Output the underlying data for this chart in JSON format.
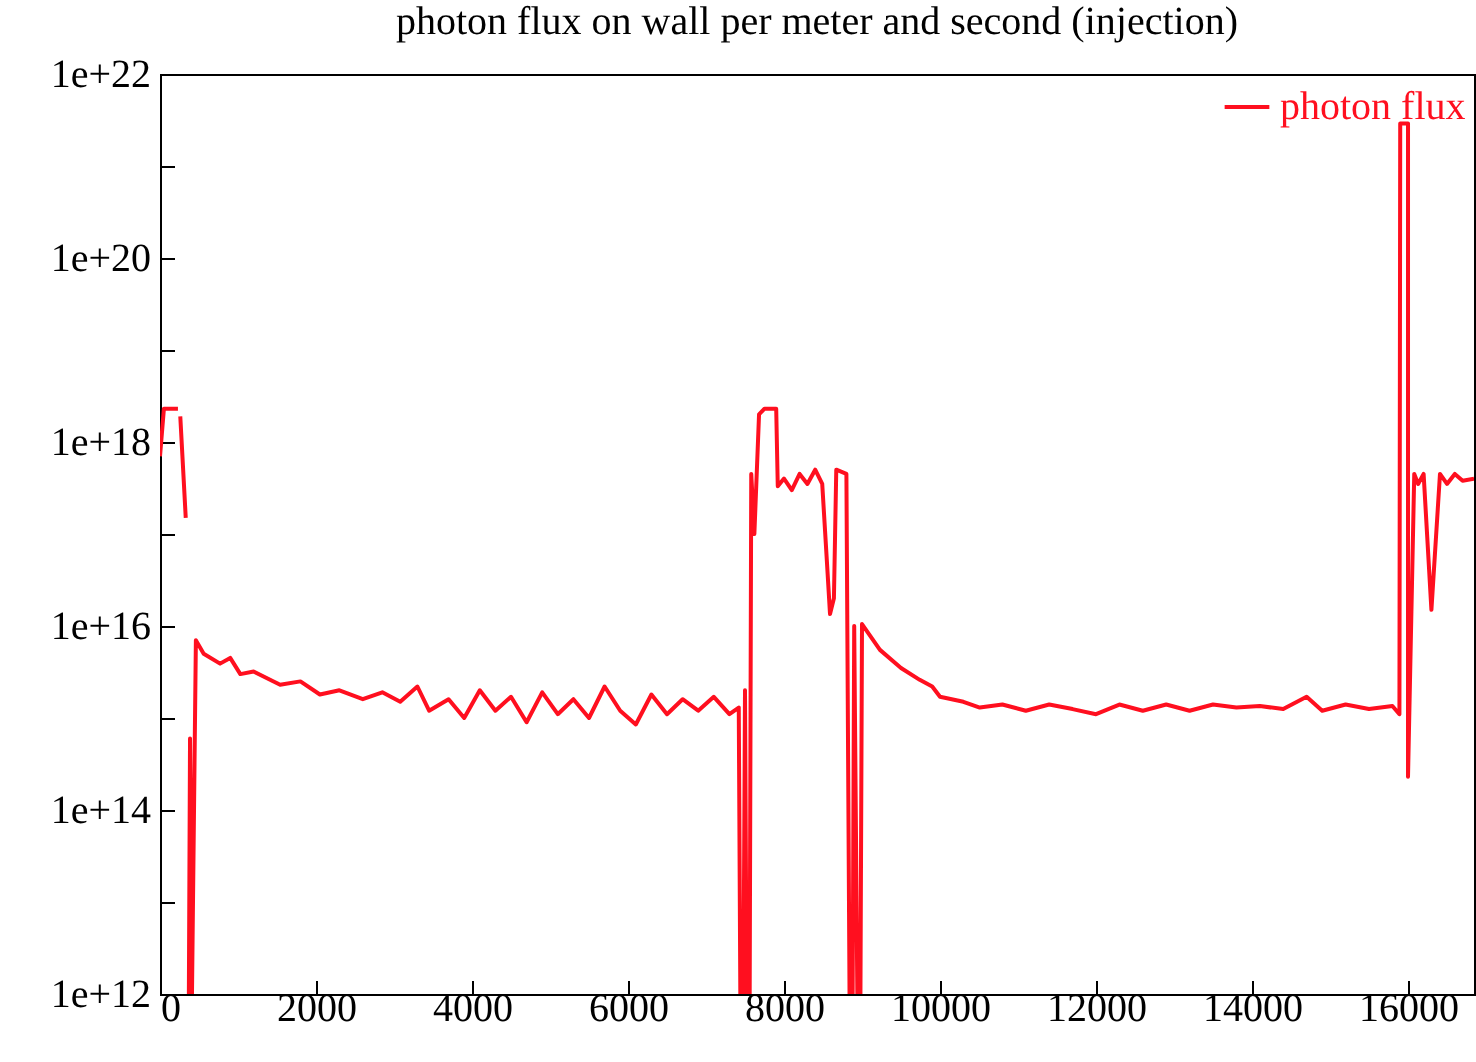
{
  "chart_data": {
    "type": "line",
    "title": "photon flux on wall per meter and second (injection)",
    "x": [
      0,
      50,
      230,
      245,
      260,
      330,
      345,
      370,
      385,
      410,
      460,
      560,
      770,
      900,
      1030,
      1200,
      1540,
      1800,
      2050,
      2300,
      2600,
      2850,
      3080,
      3300,
      3450,
      3700,
      3900,
      4100,
      4300,
      4500,
      4700,
      4900,
      5100,
      5300,
      5500,
      5700,
      5900,
      6100,
      6300,
      6500,
      6700,
      6900,
      7100,
      7300,
      7420,
      7440,
      7480,
      7500,
      7520,
      7560,
      7580,
      7620,
      7680,
      7750,
      7900,
      7920,
      8000,
      8100,
      8200,
      8300,
      8400,
      8490,
      8550,
      8590,
      8640,
      8670,
      8800,
      8840,
      8880,
      8900,
      8940,
      8980,
      9000,
      9230,
      9500,
      9740,
      9900,
      10000,
      10300,
      10510,
      10800,
      11100,
      11400,
      11700,
      12000,
      12300,
      12600,
      12900,
      13200,
      13500,
      13800,
      14100,
      14400,
      14700,
      14900,
      15200,
      15500,
      15800,
      15890,
      15900,
      16000,
      16000,
      16080,
      16130,
      16200,
      16300,
      16410,
      16500,
      16600,
      16700,
      16846
    ],
    "series": [
      {
        "name": "photon flux",
        "color": "#ff0f1f",
        "values": [
          7e+17,
          2.3e+18,
          2.3e+18,
          null,
          1.9e+18,
          1.5e+17,
          null,
          1000000000000.0,
          600000000000000.0,
          1000000000000.0,
          7000000000000000.0,
          5000000000000000.0,
          3900000000000000.0,
          4500000000000000.0,
          3000000000000000.0,
          3200000000000000.0,
          2300000000000000.0,
          2500000000000000.0,
          1800000000000000.0,
          2000000000000000.0,
          1600000000000000.0,
          1900000000000000.0,
          1500000000000000.0,
          2200000000000000.0,
          1200000000000000.0,
          1600000000000000.0,
          1000000000000000.0,
          2000000000000000.0,
          1200000000000000.0,
          1700000000000000.0,
          900000000000000.0,
          1900000000000000.0,
          1100000000000000.0,
          1600000000000000.0,
          1000000000000000.0,
          2200000000000000.0,
          1200000000000000.0,
          850000000000000.0,
          1800000000000000.0,
          1100000000000000.0,
          1600000000000000.0,
          1200000000000000.0,
          1700000000000000.0,
          1100000000000000.0,
          1300000000000000.0,
          1000000000000.0,
          1000000000000.0,
          2000000000000000.0,
          1000000000000.0,
          1000000000000.0,
          4.5e+17,
          1e+17,
          2e+18,
          2.3e+18,
          2.3e+18,
          3.3e+17,
          4e+17,
          3e+17,
          4.5e+17,
          3.5e+17,
          5e+17,
          3.5e+17,
          5e+16,
          1.35e+16,
          2e+16,
          5e+17,
          4.5e+17,
          1000000000000.0,
          1000000000000.0,
          1e+16,
          1000000000000.0,
          1000000000000.0,
          1.05e+16,
          5500000000000000.0,
          3500000000000000.0,
          2600000000000000.0,
          2200000000000000.0,
          1700000000000000.0,
          1500000000000000.0,
          1300000000000000.0,
          1400000000000000.0,
          1200000000000000.0,
          1400000000000000.0,
          1250000000000000.0,
          1100000000000000.0,
          1400000000000000.0,
          1200000000000000.0,
          1400000000000000.0,
          1200000000000000.0,
          1400000000000000.0,
          1300000000000000.0,
          1350000000000000.0,
          1250000000000000.0,
          1700000000000000.0,
          1200000000000000.0,
          1400000000000000.0,
          1250000000000000.0,
          1350000000000000.0,
          1100000000000000.0,
          2.9e+21,
          2.9e+21,
          230000000000000.0,
          4.5e+17,
          3.5e+17,
          4.5e+17,
          1.5e+16,
          4.5e+17,
          3.5e+17,
          4.5e+17,
          3.8e+17,
          4e+17
        ]
      }
    ],
    "xlim": [
      0,
      16846
    ],
    "xticks": [
      0,
      2000,
      4000,
      6000,
      8000,
      10000,
      12000,
      14000,
      16000
    ],
    "ylim": [
      1000000000000.0,
      1e+22
    ],
    "yticks": [
      {
        "value": 1000000000000.0,
        "label": "1e+12"
      },
      {
        "value": 10000000000000.0,
        "label": null
      },
      {
        "value": 100000000000000.0,
        "label": "1e+14"
      },
      {
        "value": 1000000000000000.0,
        "label": null
      },
      {
        "value": 1e+16,
        "label": "1e+16"
      },
      {
        "value": 1e+17,
        "label": null
      },
      {
        "value": 1e+18,
        "label": "1e+18"
      },
      {
        "value": 1e+19,
        "label": null
      },
      {
        "value": 1e+20,
        "label": "1e+20"
      },
      {
        "value": 1e+21,
        "label": null
      },
      {
        "value": 1e+22,
        "label": "1e+22"
      }
    ],
    "log": "y",
    "legend": "top right"
  }
}
